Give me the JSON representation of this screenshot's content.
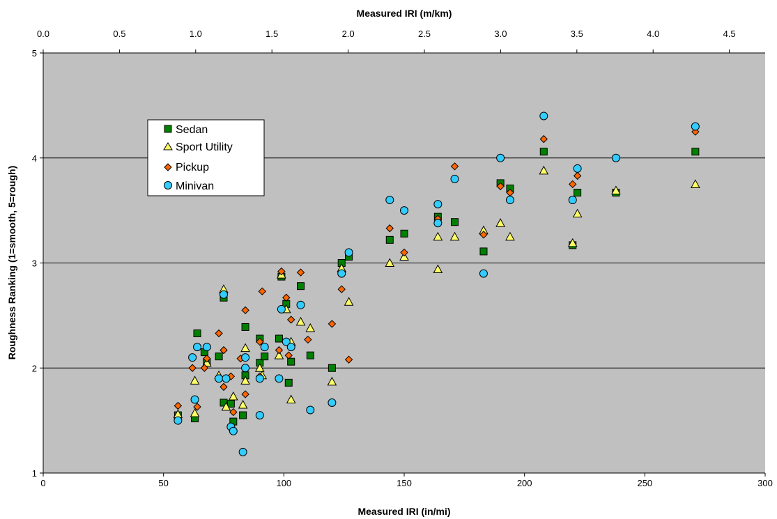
{
  "chart_data": {
    "type": "scatter",
    "title": "",
    "xlabel": "Measured IRI (in/mi)",
    "x2label": "Measured IRI (m/km)",
    "ylabel": "Roughness Ranking (1=smooth, 5=rough)",
    "xlim": [
      0,
      300
    ],
    "x2lim": [
      0.0,
      4.7348
    ],
    "ylim": [
      1,
      5
    ],
    "xticks": [
      "0",
      "50",
      "100",
      "150",
      "200",
      "250",
      "300"
    ],
    "x2ticks": [
      "0.0",
      "0.5",
      "1.0",
      "1.5",
      "2.0",
      "2.5",
      "3.0",
      "3.5",
      "4.0",
      "4.5"
    ],
    "yticks": [
      "1",
      "2",
      "3",
      "4",
      "5"
    ],
    "grid": "horizontal major lines",
    "plot_background": "#c0c0c0",
    "legend_position": "upper-left",
    "series": [
      {
        "name": "Sedan",
        "marker": "square",
        "color": "#008000",
        "points": [
          [
            56,
            1.55
          ],
          [
            63,
            1.52
          ],
          [
            64,
            2.33
          ],
          [
            67,
            2.15
          ],
          [
            68,
            2.05
          ],
          [
            73,
            2.11
          ],
          [
            75,
            2.67
          ],
          [
            75,
            1.67
          ],
          [
            78,
            1.66
          ],
          [
            79,
            1.49
          ],
          [
            83,
            1.55
          ],
          [
            84,
            1.93
          ],
          [
            84,
            2.39
          ],
          [
            90,
            2.05
          ],
          [
            90,
            2.28
          ],
          [
            92,
            2.11
          ],
          [
            98,
            2.28
          ],
          [
            99,
            2.87
          ],
          [
            101,
            2.61
          ],
          [
            102,
            1.86
          ],
          [
            103,
            2.06
          ],
          [
            107,
            2.78
          ],
          [
            111,
            2.12
          ],
          [
            120,
            2.0
          ],
          [
            124,
            3.0
          ],
          [
            127,
            3.06
          ],
          [
            144,
            3.22
          ],
          [
            150,
            3.28
          ],
          [
            164,
            3.44
          ],
          [
            171,
            3.39
          ],
          [
            183,
            3.11
          ],
          [
            190,
            3.76
          ],
          [
            194,
            3.71
          ],
          [
            208,
            4.06
          ],
          [
            220,
            3.17
          ],
          [
            222,
            3.67
          ],
          [
            238,
            3.67
          ],
          [
            271,
            4.06
          ]
        ]
      },
      {
        "name": "Sport Utility",
        "marker": "triangle",
        "color": "#ffff66",
        "points": [
          [
            56,
            1.56
          ],
          [
            63,
            1.88
          ],
          [
            63,
            1.57
          ],
          [
            68,
            2.05
          ],
          [
            73,
            1.93
          ],
          [
            75,
            2.75
          ],
          [
            76,
            1.63
          ],
          [
            79,
            1.73
          ],
          [
            83,
            1.65
          ],
          [
            84,
            2.19
          ],
          [
            84,
            1.88
          ],
          [
            90,
            2.0
          ],
          [
            91,
            1.93
          ],
          [
            98,
            2.12
          ],
          [
            99,
            2.89
          ],
          [
            101,
            2.56
          ],
          [
            103,
            2.25
          ],
          [
            103,
            1.7
          ],
          [
            107,
            2.44
          ],
          [
            111,
            2.38
          ],
          [
            120,
            1.87
          ],
          [
            124,
            2.95
          ],
          [
            127,
            2.63
          ],
          [
            144,
            3.0
          ],
          [
            150,
            3.06
          ],
          [
            164,
            2.94
          ],
          [
            164,
            3.25
          ],
          [
            171,
            3.25
          ],
          [
            183,
            3.31
          ],
          [
            190,
            3.38
          ],
          [
            194,
            3.25
          ],
          [
            208,
            3.88
          ],
          [
            220,
            3.19
          ],
          [
            222,
            3.47
          ],
          [
            238,
            3.69
          ],
          [
            271,
            3.75
          ]
        ]
      },
      {
        "name": "Pickup",
        "marker": "diamond",
        "color": "#ff6600",
        "points": [
          [
            56,
            1.64
          ],
          [
            62,
            2.0
          ],
          [
            64,
            1.63
          ],
          [
            67,
            2.0
          ],
          [
            68,
            2.09
          ],
          [
            73,
            2.33
          ],
          [
            75,
            1.82
          ],
          [
            75,
            2.17
          ],
          [
            78,
            1.92
          ],
          [
            79,
            1.58
          ],
          [
            82,
            2.09
          ],
          [
            84,
            1.75
          ],
          [
            84,
            2.55
          ],
          [
            90,
            1.92
          ],
          [
            90,
            2.25
          ],
          [
            91,
            2.73
          ],
          [
            98,
            2.17
          ],
          [
            99,
            2.92
          ],
          [
            101,
            2.67
          ],
          [
            102,
            2.12
          ],
          [
            103,
            2.46
          ],
          [
            107,
            2.91
          ],
          [
            110,
            2.27
          ],
          [
            120,
            2.42
          ],
          [
            124,
            2.75
          ],
          [
            127,
            2.08
          ],
          [
            144,
            3.33
          ],
          [
            150,
            3.1
          ],
          [
            164,
            3.42
          ],
          [
            171,
            3.92
          ],
          [
            183,
            3.27
          ],
          [
            190,
            3.73
          ],
          [
            194,
            3.67
          ],
          [
            208,
            4.18
          ],
          [
            220,
            3.75
          ],
          [
            222,
            3.83
          ],
          [
            271,
            4.25
          ]
        ]
      },
      {
        "name": "Minivan",
        "marker": "circle",
        "color": "#33ccff",
        "points": [
          [
            56,
            1.5
          ],
          [
            62,
            2.1
          ],
          [
            63,
            1.7
          ],
          [
            64,
            2.2
          ],
          [
            68,
            2.2
          ],
          [
            73,
            1.9
          ],
          [
            75,
            2.7
          ],
          [
            76,
            1.9
          ],
          [
            78,
            1.44
          ],
          [
            79,
            1.4
          ],
          [
            83,
            1.2
          ],
          [
            84,
            2.0
          ],
          [
            84,
            2.1
          ],
          [
            90,
            1.55
          ],
          [
            90,
            1.9
          ],
          [
            92,
            2.2
          ],
          [
            98,
            1.9
          ],
          [
            99,
            2.56
          ],
          [
            101,
            2.25
          ],
          [
            103,
            2.2
          ],
          [
            107,
            2.6
          ],
          [
            111,
            1.6
          ],
          [
            120,
            1.67
          ],
          [
            124,
            2.9
          ],
          [
            127,
            3.1
          ],
          [
            144,
            3.6
          ],
          [
            150,
            3.5
          ],
          [
            164,
            3.56
          ],
          [
            164,
            3.38
          ],
          [
            171,
            3.8
          ],
          [
            183,
            2.9
          ],
          [
            190,
            4.0
          ],
          [
            194,
            3.6
          ],
          [
            208,
            4.4
          ],
          [
            220,
            3.6
          ],
          [
            222,
            3.9
          ],
          [
            238,
            4.0
          ],
          [
            271,
            4.3
          ]
        ]
      }
    ]
  }
}
